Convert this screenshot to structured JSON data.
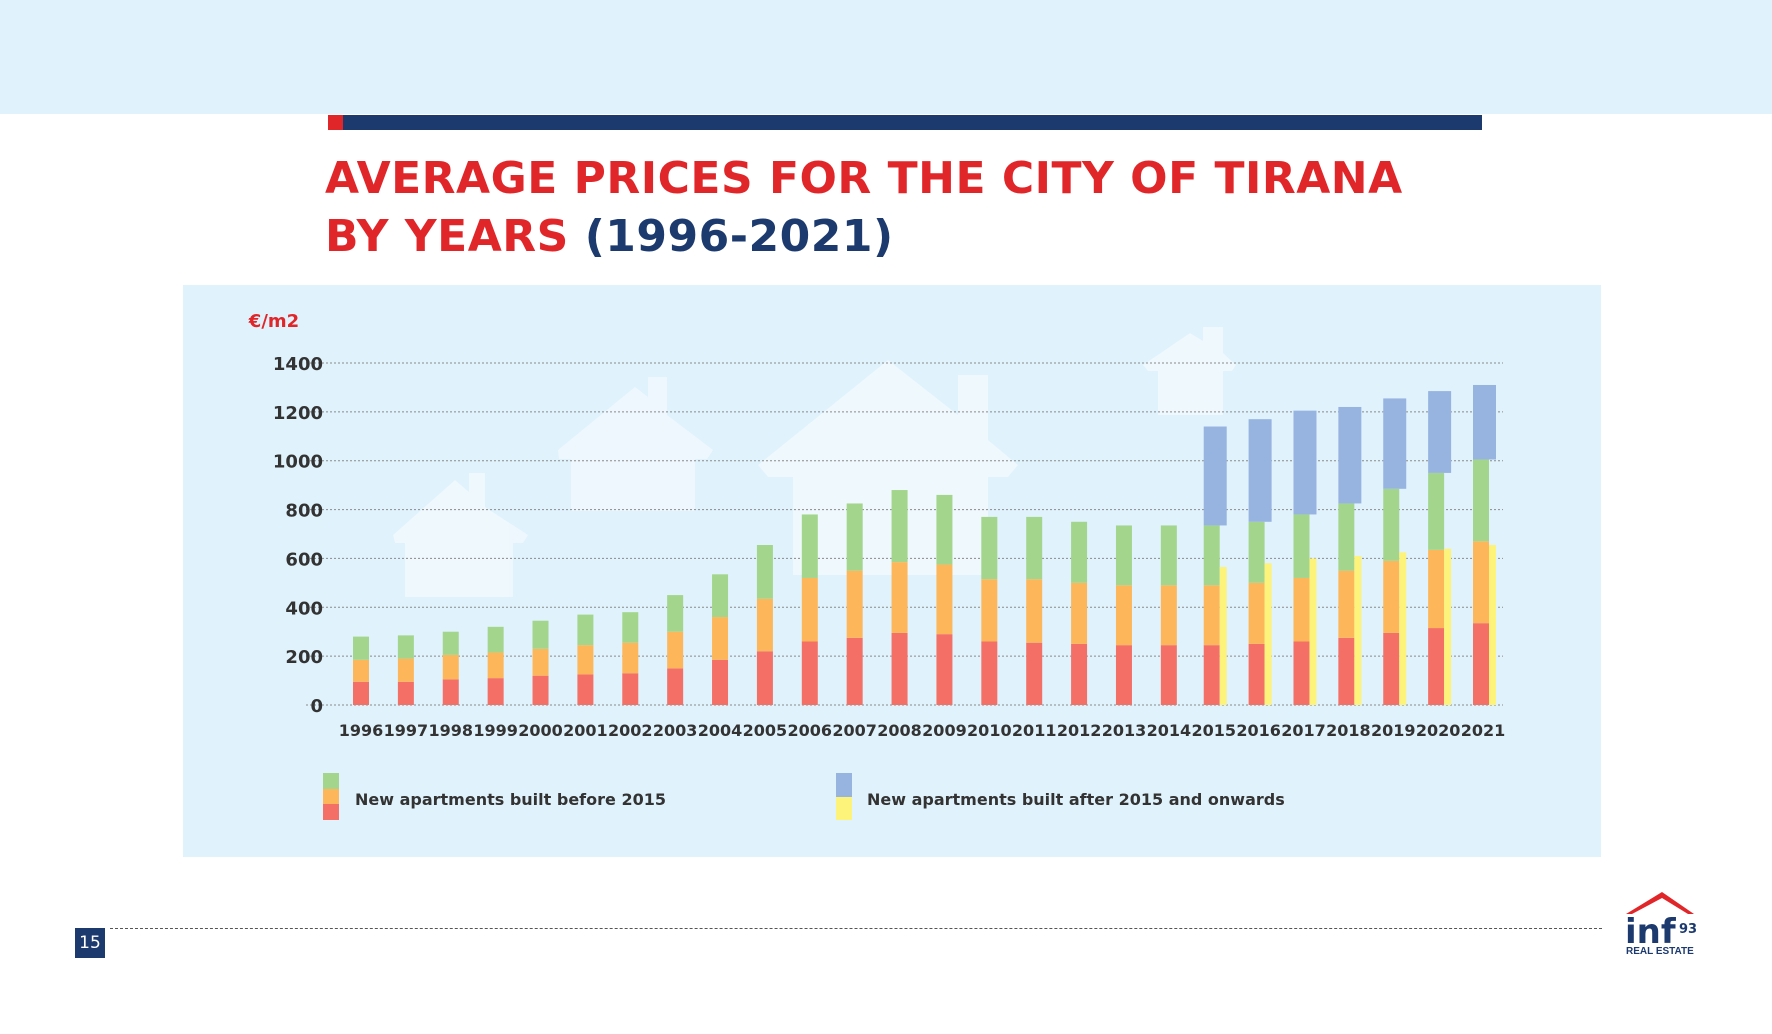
{
  "header": {
    "title_line1": "AVERAGE PRICES FOR THE CITY OF TIRANA",
    "title_line2_red": "BY YEARS",
    "title_line2_navy": "(1996-2021)"
  },
  "footer": {
    "page_number": "15"
  },
  "logo": {
    "main": "inf",
    "superscript": "93",
    "tagline": "REAL ESTATE"
  },
  "colors": {
    "red": "#f47067",
    "orange": "#fdb75a",
    "green": "#a3d68c",
    "blue": "#97b4e1",
    "yellow": "#fdf27a",
    "title_red": "#e1262a",
    "navy": "#1c3a6e"
  },
  "chart_data": {
    "type": "bar",
    "stacked": true,
    "ylabel": "€/m2",
    "ylim": [
      0,
      1400
    ],
    "yticks": [
      0,
      200,
      400,
      600,
      800,
      1000,
      1200,
      1400
    ],
    "grid": true,
    "categories": [
      "1996",
      "1997",
      "1998",
      "1999",
      "2000",
      "2001",
      "2002",
      "2003",
      "2004",
      "2005",
      "2006",
      "2007",
      "2008",
      "2009",
      "2010",
      "2011",
      "2012",
      "2013",
      "2014",
      "2015",
      "2016",
      "2017",
      "2018",
      "2019",
      "2020",
      "2021"
    ],
    "groups": [
      {
        "legend": "New apartments built before 2015",
        "series": [
          {
            "color": "red",
            "values": [
              95,
              95,
              105,
              110,
              120,
              125,
              130,
              150,
              185,
              220,
              260,
              275,
              295,
              290,
              260,
              255,
              250,
              245,
              245,
              245,
              250,
              260,
              275,
              295,
              315,
              335
            ]
          },
          {
            "color": "orange",
            "values": [
              90,
              95,
              100,
              105,
              110,
              120,
              125,
              150,
              175,
              215,
              260,
              275,
              290,
              285,
              255,
              260,
              250,
              245,
              245,
              245,
              250,
              260,
              275,
              295,
              320,
              335
            ]
          },
          {
            "color": "green",
            "values": [
              95,
              95,
              95,
              105,
              115,
              125,
              125,
              150,
              175,
              220,
              260,
              275,
              295,
              285,
              255,
              255,
              250,
              245,
              245,
              245,
              250,
              260,
              275,
              295,
              315,
              335
            ]
          }
        ]
      },
      {
        "legend": "New apartments built after 2015 and onwards",
        "series": [
          {
            "color": "yellow",
            "values": [
              null,
              null,
              null,
              null,
              null,
              null,
              null,
              null,
              null,
              null,
              null,
              null,
              null,
              null,
              null,
              null,
              null,
              null,
              null,
              565,
              580,
              600,
              610,
              625,
              640,
              655
            ]
          },
          {
            "color": "blue",
            "values": [
              null,
              null,
              null,
              null,
              null,
              null,
              null,
              null,
              null,
              null,
              null,
              null,
              null,
              null,
              null,
              null,
              null,
              null,
              null,
              575,
              590,
              605,
              610,
              630,
              645,
              655
            ]
          }
        ]
      }
    ]
  }
}
